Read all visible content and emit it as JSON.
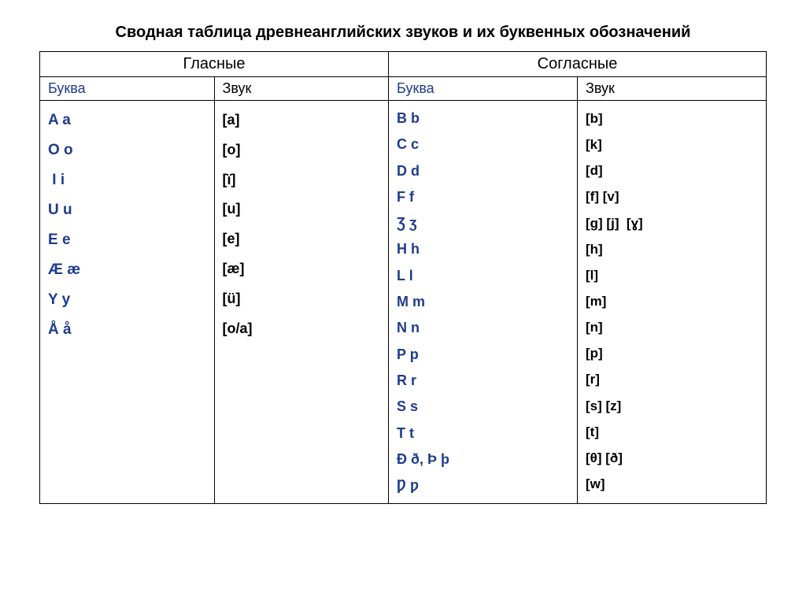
{
  "title": "Сводная таблица древнеанглийских звуков и их буквенных обозначений",
  "headers": {
    "vowels": "Гласные",
    "consonants": "Согласные",
    "letter": "Буква",
    "sound": "Звук"
  },
  "vowel_letters": [
    "A a",
    "O o",
    " I i",
    "U u",
    "E e",
    "Æ æ",
    "Y y",
    "Å å"
  ],
  "vowel_sounds": [
    "[a]",
    "[o]",
    "[ï]",
    "[u]",
    "[e]",
    "[æ]",
    "[ü]",
    "[o/a]"
  ],
  "consonant_letters": [
    "B b",
    "C c",
    "D d",
    "F f",
    "Ʒ ʒ",
    "H h",
    "L l",
    "M m",
    "N n",
    "P p",
    "R r",
    "S s",
    "T t",
    "Ð ð, Þ þ",
    "Ƿ ƿ"
  ],
  "consonant_sounds": [
    "[b]",
    "[k]",
    "[d]",
    "[f] [v]",
    "[g] [j]  [ɣ]",
    "[h]",
    "[l]",
    "[m]",
    "[n]",
    "[p]",
    "[r]",
    "[s] [z]",
    "[t]",
    "[θ] [ð]",
    "[w]"
  ],
  "colors": {
    "letter_color": "#1e3c8c",
    "text_color": "#000000",
    "border_color": "#000000",
    "background": "#ffffff"
  },
  "layout": {
    "columns": 4,
    "col_widths_pct": [
      24,
      24,
      26,
      26
    ]
  },
  "typography": {
    "title_fontsize": 20,
    "header_fontsize": 20,
    "cell_fontsize": 18,
    "font_family": "Arial"
  }
}
